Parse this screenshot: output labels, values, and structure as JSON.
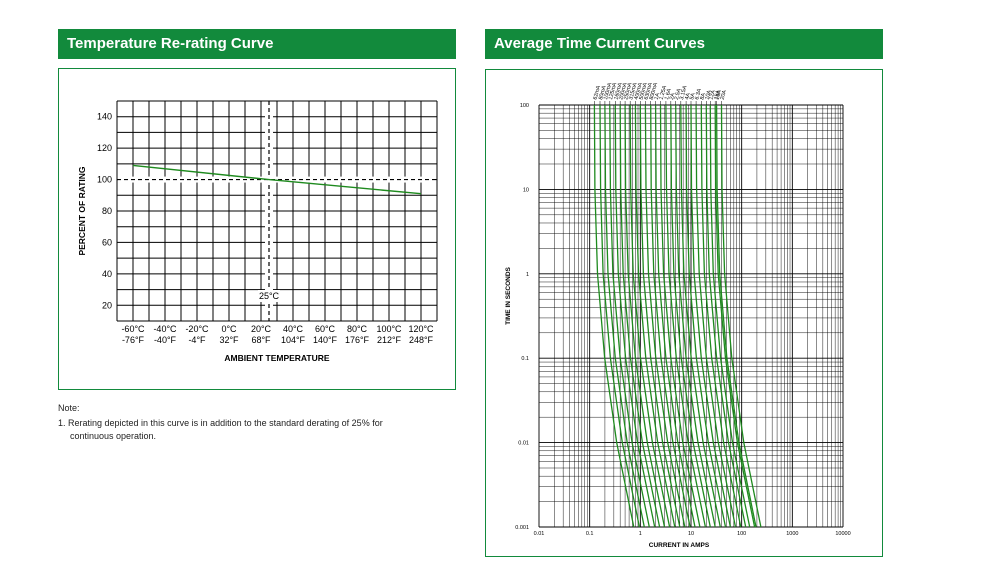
{
  "left_panel": {
    "header": "Temperature Re-rating Curve",
    "note_title": "Note:",
    "note_line1": "1.  Rerating depicted in this curve is in addition to the standard derating of 25% for",
    "note_line2": "continuous operation."
  },
  "right_panel": {
    "header": "Average Time Current Curves"
  },
  "colors": {
    "accent": "#128a3c",
    "curve": "#1e8a1e",
    "grid": "#000000"
  },
  "chart_data": [
    {
      "type": "line",
      "title": "Temperature Re-rating Curve",
      "xlabel": "AMBIENT TEMPERATURE",
      "ylabel": "PERCENT OF RATING",
      "x_tick_labels_c": [
        "-60°C",
        "-40°C",
        "-20°C",
        "0°C",
        "20°C",
        "40°C",
        "60°C",
        "80°C",
        "100°C",
        "120°C"
      ],
      "x_tick_labels_f": [
        "-76°F",
        "-40°F",
        "-4°F",
        "32°F",
        "68°F",
        "104°F",
        "140°F",
        "176°F",
        "212°F",
        "248°F"
      ],
      "x_ticks": [
        -60,
        -40,
        -20,
        0,
        20,
        40,
        60,
        80,
        100,
        120
      ],
      "y_ticks": [
        20,
        40,
        60,
        80,
        100,
        120,
        140
      ],
      "xlim": [
        -70,
        130
      ],
      "ylim": [
        10,
        150
      ],
      "grid": true,
      "reference_x": 25,
      "reference_x_label": "25°C",
      "reference_y": 100,
      "series": [
        {
          "x": [
            -60,
            25,
            120
          ],
          "y": [
            109,
            100,
            91
          ]
        }
      ]
    },
    {
      "type": "line",
      "title": "Average Time Current Curves",
      "xlabel": "CURRENT IN AMPS",
      "ylabel": "TIME IN SECONDS",
      "x_scale": "log",
      "y_scale": "log",
      "xlim": [
        0.01,
        10000
      ],
      "ylim": [
        0.001,
        100
      ],
      "x_tick_labels": [
        "0.01",
        "0.1",
        "1",
        "10",
        "100",
        "1000",
        "10000"
      ],
      "y_tick_labels": [
        "0.001",
        "0.01",
        "0.1",
        "1",
        "10",
        "100"
      ],
      "grid": true,
      "ratings": [
        "62mA",
        "80mA",
        "100mA",
        "125mA",
        "160mA",
        "200mA",
        "250mA",
        "315mA",
        "400mA",
        "500mA",
        "630mA",
        "800mA",
        "1A",
        "1.25A",
        "1.6A",
        "2A",
        "2.5A",
        "3.15A",
        "4A",
        "5A",
        "6.3A",
        "8A",
        "10A",
        "12A",
        "15A",
        "16A",
        "20A"
      ],
      "rating_amps": [
        0.062,
        0.08,
        0.1,
        0.125,
        0.16,
        0.2,
        0.25,
        0.315,
        0.4,
        0.5,
        0.63,
        0.8,
        1,
        1.25,
        1.6,
        2,
        2.5,
        3.15,
        4,
        5,
        6.3,
        8,
        10,
        12,
        15,
        16,
        20
      ],
      "curve_shape": {
        "time_s": [
          100,
          10,
          1,
          0.1,
          0.01,
          0.001
        ],
        "current_multiple_of_rating": [
          2.0,
          2.05,
          2.3,
          3.2,
          5.5,
          12
        ]
      }
    }
  ]
}
